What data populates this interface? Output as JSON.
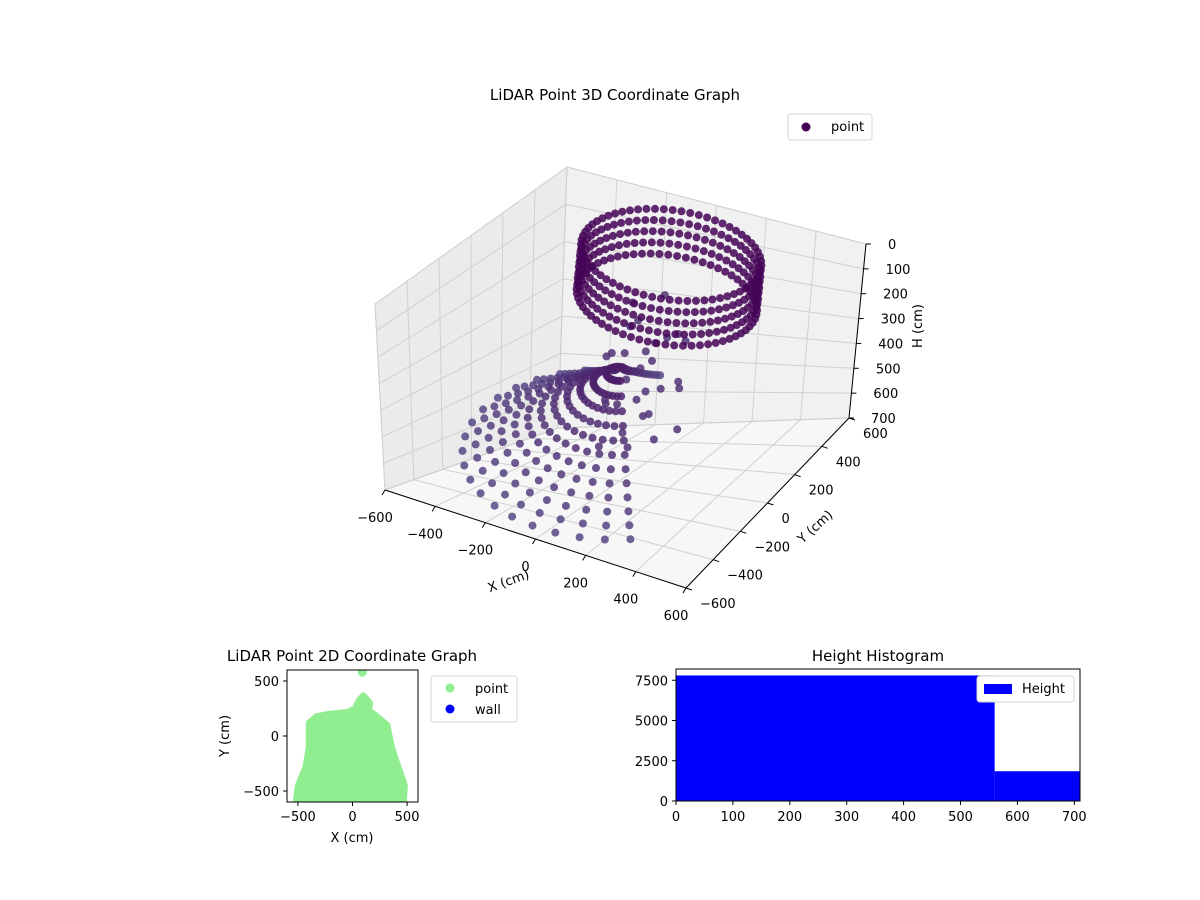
{
  "chart_data": [
    {
      "type": "scatter",
      "projection": "3d",
      "title": "LiDAR Point 3D Coordinate Graph",
      "xlabel": "X (cm)",
      "ylabel": "Y (cm)",
      "zlabel": "H (cm)",
      "xlim": [
        -600,
        600
      ],
      "ylim": [
        -600,
        600
      ],
      "zlim": [
        0,
        700
      ],
      "z_inverted": true,
      "xticks": [
        -600,
        -400,
        -200,
        0,
        200,
        400,
        600
      ],
      "xtick_labels": [
        "−600",
        "−400",
        "−200",
        "0",
        "200",
        "400",
        "600"
      ],
      "yticks": [
        -600,
        -400,
        -200,
        0,
        200,
        400,
        600
      ],
      "ytick_labels": [
        "−600",
        "−400",
        "−200",
        "0",
        "200",
        "400",
        "600"
      ],
      "zticks": [
        0,
        100,
        200,
        300,
        400,
        500,
        600,
        700
      ],
      "ztick_labels": [
        "0",
        "100",
        "200",
        "300",
        "400",
        "500",
        "600",
        "700"
      ],
      "grid": true,
      "legend": {
        "placement": "top-right",
        "entries": [
          {
            "label": "point",
            "color": "#440154"
          }
        ]
      },
      "series": [
        {
          "name": "point",
          "color": "#440154",
          "clusters": [
            {
              "desc": "ceiling ring",
              "center_xy": [
                40,
                200
              ],
              "radius": 330,
              "h_range": [
                0,
                180
              ]
            },
            {
              "desc": "radial floor fans",
              "center_xy": [
                0,
                -50
              ],
              "radius": 520,
              "h_range": [
                180,
                700
              ]
            }
          ]
        }
      ]
    },
    {
      "type": "scatter",
      "title": "LiDAR Point 2D Coordinate Graph",
      "xlabel": "X (cm)",
      "ylabel": "Y (cm)",
      "xlim": [
        -600,
        600
      ],
      "ylim": [
        -600,
        600
      ],
      "xticks": [
        -500,
        0,
        500
      ],
      "xtick_labels": [
        "−500",
        "0",
        "500"
      ],
      "yticks": [
        -500,
        0,
        500
      ],
      "ytick_labels": [
        "−500",
        "0",
        "500"
      ],
      "legend": {
        "placement": "outside-right",
        "entries": [
          {
            "label": "point",
            "color": "#90ee90"
          },
          {
            "label": "wall",
            "color": "#0000ff"
          }
        ]
      },
      "series": [
        {
          "name": "point",
          "color": "#90ee90",
          "outline": [
            [
              -520,
              -600
            ],
            [
              -500,
              -450
            ],
            [
              -430,
              -280
            ],
            [
              -400,
              -100
            ],
            [
              -400,
              120
            ],
            [
              -330,
              180
            ],
            [
              -220,
              200
            ],
            [
              -40,
              220
            ],
            [
              20,
              250
            ],
            [
              60,
              330
            ],
            [
              100,
              370
            ],
            [
              160,
              300
            ],
            [
              150,
              230
            ],
            [
              200,
              200
            ],
            [
              320,
              100
            ],
            [
              360,
              -100
            ],
            [
              420,
              -280
            ],
            [
              480,
              -450
            ],
            [
              470,
              -600
            ]
          ],
          "outliers": [
            [
              90,
              580
            ]
          ]
        },
        {
          "name": "wall",
          "color": "#0000ff",
          "points": []
        }
      ]
    },
    {
      "type": "bar",
      "subtype": "histogram",
      "title": "Height Histogram",
      "xlim": [
        0,
        710
      ],
      "ylim": [
        0,
        8200
      ],
      "xticks": [
        0,
        100,
        200,
        300,
        400,
        500,
        600,
        700
      ],
      "xtick_labels": [
        "0",
        "100",
        "200",
        "300",
        "400",
        "500",
        "600",
        "700"
      ],
      "yticks": [
        0,
        2500,
        5000,
        7500
      ],
      "ytick_labels": [
        "0",
        "2500",
        "5000",
        "7500"
      ],
      "legend": {
        "placement": "top-right",
        "entries": [
          {
            "label": "Height",
            "color": "#0000ff"
          }
        ]
      },
      "series": [
        {
          "name": "Height",
          "color": "#0000ff",
          "bins": [
            {
              "from": 0,
              "to": 560,
              "count": 7800
            },
            {
              "from": 560,
              "to": 710,
              "count": 1850
            }
          ]
        }
      ]
    }
  ]
}
